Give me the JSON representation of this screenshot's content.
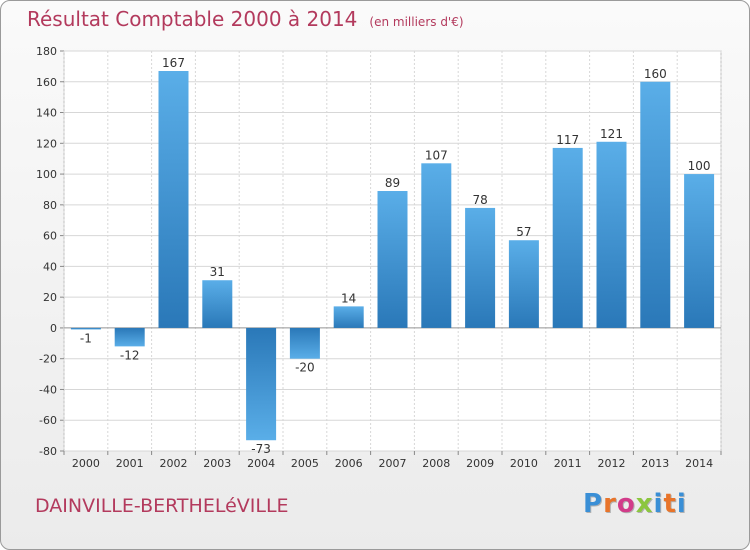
{
  "title": {
    "main": "Résultat Comptable 2000 à 2014",
    "unit": "(en milliers d'€)"
  },
  "commune": "DAINVILLE-BERTHELéVILLE",
  "logo": {
    "text": "Proxiti",
    "letter_colors": [
      "#3a8fd6",
      "#e8742a",
      "#d23c8a",
      "#8cc63f",
      "#3a8fd6",
      "#e8742a",
      "#3a8fd6"
    ]
  },
  "colors": {
    "bar_dark": "#2a78b8",
    "bar_light": "#5aaee8",
    "grid": "#d7d7d7",
    "axis_text": "#333333",
    "title": "#b33a5d"
  },
  "chart_data": {
    "type": "bar",
    "categories": [
      "2000",
      "2001",
      "2002",
      "2003",
      "2004",
      "2005",
      "2006",
      "2007",
      "2008",
      "2009",
      "2010",
      "2011",
      "2012",
      "2013",
      "2014"
    ],
    "values": [
      -1,
      -12,
      167,
      31,
      -73,
      -20,
      14,
      89,
      107,
      78,
      57,
      117,
      121,
      160,
      100
    ],
    "ylim": [
      -80,
      180
    ],
    "yticks": [
      -80,
      -60,
      -40,
      -20,
      0,
      20,
      40,
      60,
      80,
      100,
      120,
      140,
      160,
      180
    ],
    "grid": true,
    "title": "Résultat Comptable 2000 à 2014"
  }
}
